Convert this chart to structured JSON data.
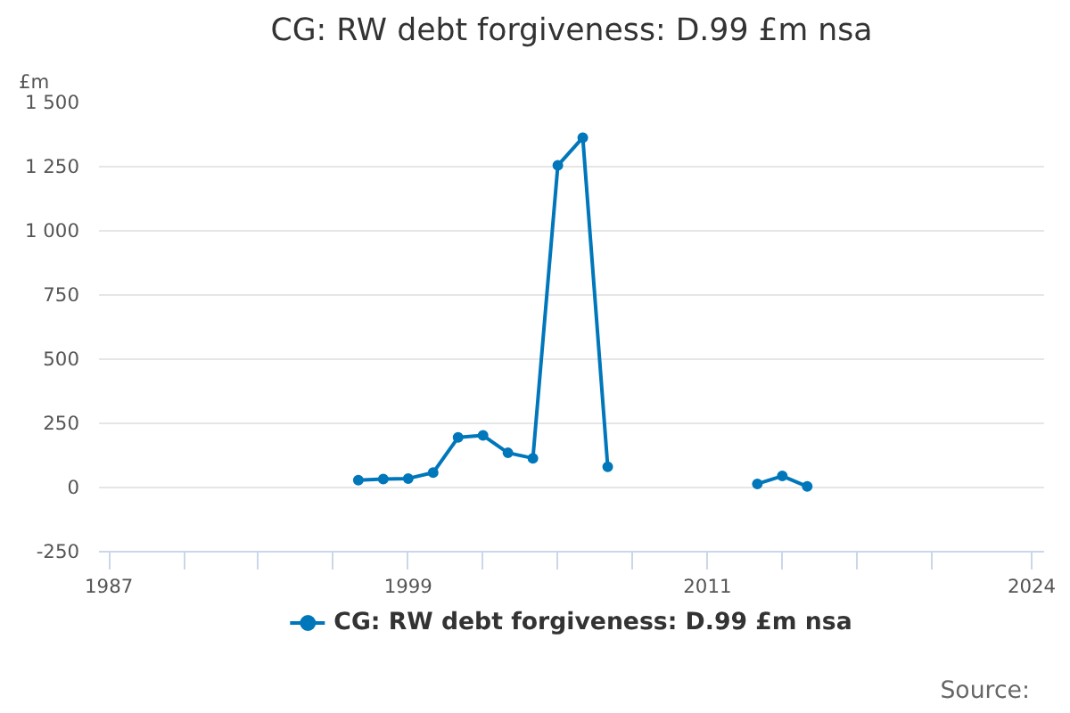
{
  "chart_data": {
    "type": "line",
    "title": "CG: RW debt forgiveness: D.99 £m nsa",
    "ylabel": "£m",
    "x": [
      1997,
      1998,
      1999,
      2000,
      2001,
      2002,
      2003,
      2004,
      2005,
      2006,
      2007,
      2008,
      2009,
      2010,
      2011,
      2012,
      2013,
      2014,
      2015
    ],
    "series": [
      {
        "name": "CG: RW debt forgiveness: D.99 £m nsa",
        "color": "#0077bb",
        "values": [
          29,
          33,
          35,
          58,
          195,
          203,
          135,
          114,
          1255,
          1363,
          81,
          null,
          null,
          null,
          null,
          null,
          14,
          45,
          4
        ]
      }
    ],
    "xlim": [
      1986.6,
      2024.5
    ],
    "xticks": [
      1987,
      {
        "value": 1990,
        "label": null
      },
      {
        "value": 1993,
        "label": null
      },
      {
        "value": 1996,
        "label": null
      },
      1999,
      {
        "value": 2002,
        "label": null
      },
      {
        "value": 2005,
        "label": null
      },
      {
        "value": 2008,
        "label": null
      },
      2011,
      {
        "value": 2014,
        "label": null
      },
      {
        "value": 2017,
        "label": null
      },
      {
        "value": 2020,
        "label": null
      },
      2024
    ],
    "ylim": [
      -250,
      1500
    ],
    "yticks": [
      -250,
      0,
      250,
      500,
      750,
      {
        "value": 1000,
        "label": "1 000"
      },
      {
        "value": 1250,
        "label": "1 250"
      },
      {
        "value": 1500,
        "label": "1 500"
      }
    ],
    "grid": "y",
    "legend": "bottom",
    "marker": "circle",
    "line_style": "solid",
    "annotations": [
      "Source:"
    ]
  }
}
